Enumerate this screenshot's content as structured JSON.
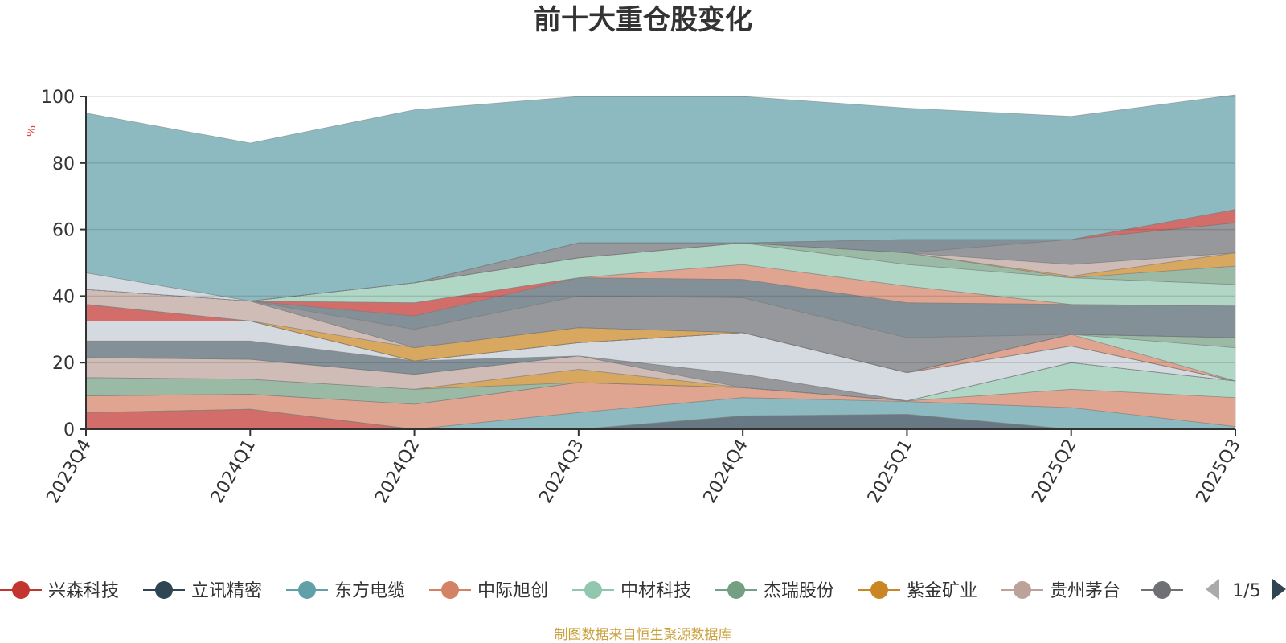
{
  "chart_data": {
    "type": "area",
    "stacked": true,
    "title": "前十大重仓股变化",
    "ylabel": "%",
    "ylim": [
      0,
      100
    ],
    "y_ticks": [
      "0",
      "20",
      "40",
      "60",
      "80",
      "100"
    ],
    "categories": [
      "2023Q4",
      "2024Q1",
      "2024Q2",
      "2024Q3",
      "2024Q4",
      "2025Q1",
      "2025Q2",
      "2025Q3"
    ],
    "series": [
      {
        "name": "兴森科技",
        "color": "#c23531",
        "values": [
          5,
          6,
          0,
          0,
          0,
          0,
          0,
          0
        ]
      },
      {
        "name": "立讯精密",
        "color": "#2f4554",
        "values": [
          0,
          0,
          0,
          0,
          4,
          4.5,
          0,
          0
        ]
      },
      {
        "name": "东方电缆",
        "color": "#61a0a8",
        "values": [
          0,
          0,
          0,
          5,
          5.5,
          3.8,
          6.5,
          0.8
        ]
      },
      {
        "name": "中际旭创",
        "color": "#d48265",
        "values": [
          5,
          4.5,
          7.5,
          9,
          3,
          0.2,
          5.5,
          8.7
        ]
      },
      {
        "name": "中材科技",
        "color": "#91c7ae",
        "values": [
          0,
          0,
          0,
          0,
          0,
          0,
          8,
          5
        ]
      },
      {
        "name": "杰瑞股份",
        "color": "#749f83",
        "values": [
          5.5,
          4.5,
          4.5,
          0,
          0,
          0,
          0,
          0
        ]
      },
      {
        "name": "紫金矿业",
        "color": "#ca8622",
        "values": [
          0,
          0,
          0,
          4,
          0,
          0,
          0,
          0
        ]
      },
      {
        "name": "贵州茅台",
        "color": "#bda29a",
        "values": [
          6,
          6,
          4.5,
          4,
          0,
          0,
          0,
          0
        ]
      },
      {
        "name": "其他",
        "color": "#6e7074",
        "values": [
          0,
          0,
          0,
          0,
          4,
          0,
          0,
          0
        ]
      },
      {
        "name": "",
        "color": "#546570",
        "values": [
          5,
          5.5,
          4,
          0,
          0,
          0,
          0,
          0
        ]
      },
      {
        "name": "",
        "color": "#c4ccd3",
        "values": [
          6,
          6,
          0,
          4,
          12.5,
          8.5,
          5,
          0
        ]
      },
      {
        "name": "",
        "color": "#c23531",
        "values": [
          5,
          0,
          0,
          0,
          0,
          0,
          0,
          0
        ]
      },
      {
        "name": "",
        "color": "#2f4554",
        "values": [
          0,
          0,
          0,
          0,
          0,
          0,
          0,
          0
        ]
      },
      {
        "name": "",
        "color": "#61a0a8",
        "values": [
          0,
          0,
          0,
          0,
          0,
          0,
          0,
          0
        ]
      },
      {
        "name": "",
        "color": "#d48265",
        "values": [
          0,
          0,
          0,
          0,
          0,
          0,
          3.5,
          0
        ]
      },
      {
        "name": "",
        "color": "#91c7ae",
        "values": [
          0,
          0,
          0,
          0,
          0,
          0,
          0,
          10
        ]
      },
      {
        "name": "",
        "color": "#749f83",
        "values": [
          0,
          0,
          0,
          0,
          0,
          0,
          0,
          3
        ]
      },
      {
        "name": "",
        "color": "#ca8622",
        "values": [
          0,
          0,
          4,
          4.5,
          0,
          0,
          0,
          0
        ]
      },
      {
        "name": "",
        "color": "#bda29a",
        "values": [
          4.5,
          6,
          0,
          0,
          0,
          0,
          0,
          0
        ]
      },
      {
        "name": "",
        "color": "#6e7074",
        "values": [
          0,
          0,
          5.5,
          9.5,
          10.5,
          10.5,
          0,
          0
        ]
      },
      {
        "name": "",
        "color": "#546570",
        "values": [
          0,
          0,
          4,
          5.5,
          5.5,
          10.5,
          9,
          9.5
        ]
      },
      {
        "name": "",
        "color": "#c23531",
        "values": [
          0,
          0,
          4,
          0,
          0,
          0,
          0,
          0
        ]
      },
      {
        "name": "",
        "color": "#d48265",
        "values": [
          0,
          0,
          0,
          0,
          4.5,
          5,
          0,
          0
        ]
      },
      {
        "name": "",
        "color": "#91c7ae",
        "values": [
          0,
          0,
          6,
          6,
          6.5,
          6.5,
          8,
          6.5
        ]
      },
      {
        "name": "",
        "color": "#749f83",
        "values": [
          0,
          0,
          0,
          0,
          0,
          3.5,
          0,
          5.5
        ]
      },
      {
        "name": "",
        "color": "#ca8622",
        "values": [
          0,
          0,
          0,
          0,
          0,
          0,
          0.5,
          4
        ]
      },
      {
        "name": "",
        "color": "#bda29a",
        "values": [
          0,
          0,
          0,
          0,
          0,
          0,
          3.5,
          0
        ]
      },
      {
        "name": "",
        "color": "#6e7074",
        "values": [
          0,
          0,
          0,
          4.5,
          0,
          0,
          7.5,
          9
        ]
      },
      {
        "name": "",
        "color": "#546570",
        "values": [
          0,
          0,
          0,
          0,
          0,
          4,
          0,
          0
        ]
      },
      {
        "name": "",
        "color": "#c23531",
        "values": [
          0,
          0,
          0,
          0,
          0,
          0,
          0,
          4
        ]
      },
      {
        "name": "",
        "color": "#c4ccd3",
        "values": [
          5,
          0,
          0,
          0,
          0,
          0,
          0,
          0
        ]
      },
      {
        "name": "",
        "color": "#61a0a8",
        "values": [
          48,
          47.5,
          52,
          44,
          44,
          39.5,
          37,
          34.5
        ]
      }
    ]
  },
  "legend": {
    "items": [
      {
        "name": "兴森科技",
        "color": "#c23531"
      },
      {
        "name": "立讯精密",
        "color": "#2f4554"
      },
      {
        "name": "东方电缆",
        "color": "#61a0a8"
      },
      {
        "name": "中际旭创",
        "color": "#d48265"
      },
      {
        "name": "中材科技",
        "color": "#91c7ae"
      },
      {
        "name": "杰瑞股份",
        "color": "#749f83"
      },
      {
        "name": "紫金矿业",
        "color": "#ca8622"
      },
      {
        "name": "贵州茅台",
        "color": "#bda29a"
      }
    ],
    "partial_item": {
      "name": "彳",
      "color": "#6e7074"
    },
    "page_indicator": "1/5",
    "prev_icon_color": "#aaaaaa",
    "next_icon_color": "#2f4554"
  },
  "footer": {
    "source": "制图数据来自恒生聚源数据库",
    "color": "#c9a13e"
  },
  "colors": {
    "unit": "#e03a3a",
    "grid": "#d9d9d9",
    "axis": "#333333",
    "stroke": "#808080"
  }
}
